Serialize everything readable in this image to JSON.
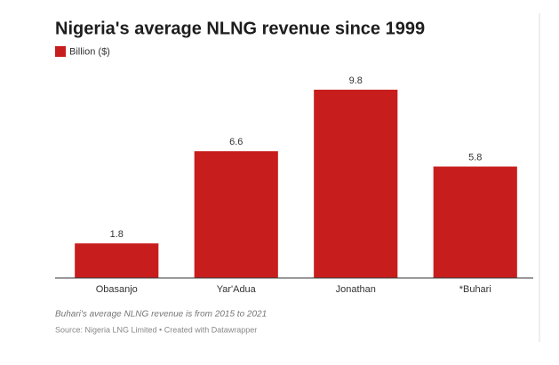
{
  "chart_data": {
    "type": "bar",
    "title": "Nigeria's average NLNG revenue since 1999",
    "categories": [
      "Obasanjo",
      "Yar'Adua",
      "Jonathan",
      "*Buhari"
    ],
    "series": [
      {
        "name": "Billion ($)",
        "color": "#c71e1d",
        "values": [
          1.8,
          6.6,
          9.8,
          5.8
        ]
      }
    ],
    "notes": "Buhari's average NLNG revenue is from 2015 to 2021",
    "source": "Source: Nigeria LNG Limited • Created with Datawrapper"
  }
}
